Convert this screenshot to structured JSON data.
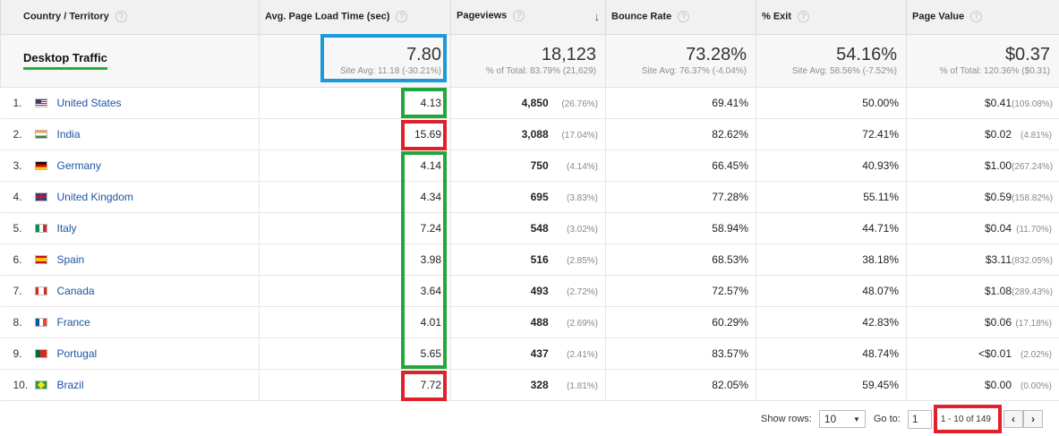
{
  "columns": [
    {
      "label": "Country / Territory"
    },
    {
      "label": "Avg. Page Load Time (sec)"
    },
    {
      "label": "Pageviews"
    },
    {
      "label": "Bounce Rate"
    },
    {
      "label": "% Exit"
    },
    {
      "label": "Page Value"
    }
  ],
  "help_glyph": "?",
  "sort_glyph": "↓",
  "summary": {
    "segment": "Desktop Traffic",
    "segment_underline_color": "#2eaa3c",
    "load_time": {
      "value": "7.80",
      "sub": "Site Avg: 11.18 (-30.21%)"
    },
    "pageviews": {
      "value": "18,123",
      "sub": "% of Total: 83.79% (21,629)"
    },
    "bounce": {
      "value": "73.28%",
      "sub": "Site Avg: 76.37% (-4.04%)"
    },
    "exit": {
      "value": "54.16%",
      "sub": "Site Avg: 58.56% (-7.52%)"
    },
    "page_value": {
      "value": "$0.37",
      "sub": "% of Total: 120.36% ($0.31)"
    }
  },
  "rows": [
    {
      "rank": "1.",
      "flag": "us",
      "country": "United States",
      "load": "4.13",
      "pv": "4,850",
      "pv_pct": "(26.76%)",
      "bounce": "69.41%",
      "exit": "50.00%",
      "value": "$0.41",
      "value_pct": "(109.08%)"
    },
    {
      "rank": "2.",
      "flag": "in",
      "country": "India",
      "load": "15.69",
      "pv": "3,088",
      "pv_pct": "(17.04%)",
      "bounce": "82.62%",
      "exit": "72.41%",
      "value": "$0.02",
      "value_pct": "(4.81%)"
    },
    {
      "rank": "3.",
      "flag": "de",
      "country": "Germany",
      "load": "4.14",
      "pv": "750",
      "pv_pct": "(4.14%)",
      "bounce": "66.45%",
      "exit": "40.93%",
      "value": "$1.00",
      "value_pct": "(267.24%)"
    },
    {
      "rank": "4.",
      "flag": "gb",
      "country": "United Kingdom",
      "load": "4.34",
      "pv": "695",
      "pv_pct": "(3.83%)",
      "bounce": "77.28%",
      "exit": "55.11%",
      "value": "$0.59",
      "value_pct": "(158.82%)"
    },
    {
      "rank": "5.",
      "flag": "it",
      "country": "Italy",
      "load": "7.24",
      "pv": "548",
      "pv_pct": "(3.02%)",
      "bounce": "58.94%",
      "exit": "44.71%",
      "value": "$0.04",
      "value_pct": "(11.70%)"
    },
    {
      "rank": "6.",
      "flag": "es",
      "country": "Spain",
      "load": "3.98",
      "pv": "516",
      "pv_pct": "(2.85%)",
      "bounce": "68.53%",
      "exit": "38.18%",
      "value": "$3.11",
      "value_pct": "(832.05%)"
    },
    {
      "rank": "7.",
      "flag": "ca",
      "country": "Canada",
      "load": "3.64",
      "pv": "493",
      "pv_pct": "(2.72%)",
      "bounce": "72.57%",
      "exit": "48.07%",
      "value": "$1.08",
      "value_pct": "(289.43%)"
    },
    {
      "rank": "8.",
      "flag": "fr",
      "country": "France",
      "load": "4.01",
      "pv": "488",
      "pv_pct": "(2.69%)",
      "bounce": "60.29%",
      "exit": "42.83%",
      "value": "$0.06",
      "value_pct": "(17.18%)"
    },
    {
      "rank": "9.",
      "flag": "pt",
      "country": "Portugal",
      "load": "5.65",
      "pv": "437",
      "pv_pct": "(2.41%)",
      "bounce": "83.57%",
      "exit": "48.74%",
      "value": "<$0.01",
      "value_pct": "(2.02%)"
    },
    {
      "rank": "10.",
      "flag": "br",
      "country": "Brazil",
      "load": "7.72",
      "pv": "328",
      "pv_pct": "(1.81%)",
      "bounce": "82.05%",
      "exit": "59.45%",
      "value": "$0.00",
      "value_pct": "(0.00%)"
    }
  ],
  "pagination": {
    "show_rows_label": "Show rows:",
    "show_rows_value": "10",
    "goto_label": "Go to:",
    "goto_value": "1",
    "range": "1 - 10 of 149",
    "prev": "‹",
    "next": "›"
  },
  "highlight_colors": {
    "blue": "#1a9ad6",
    "green": "#22a83a",
    "red": "#e0202b"
  }
}
